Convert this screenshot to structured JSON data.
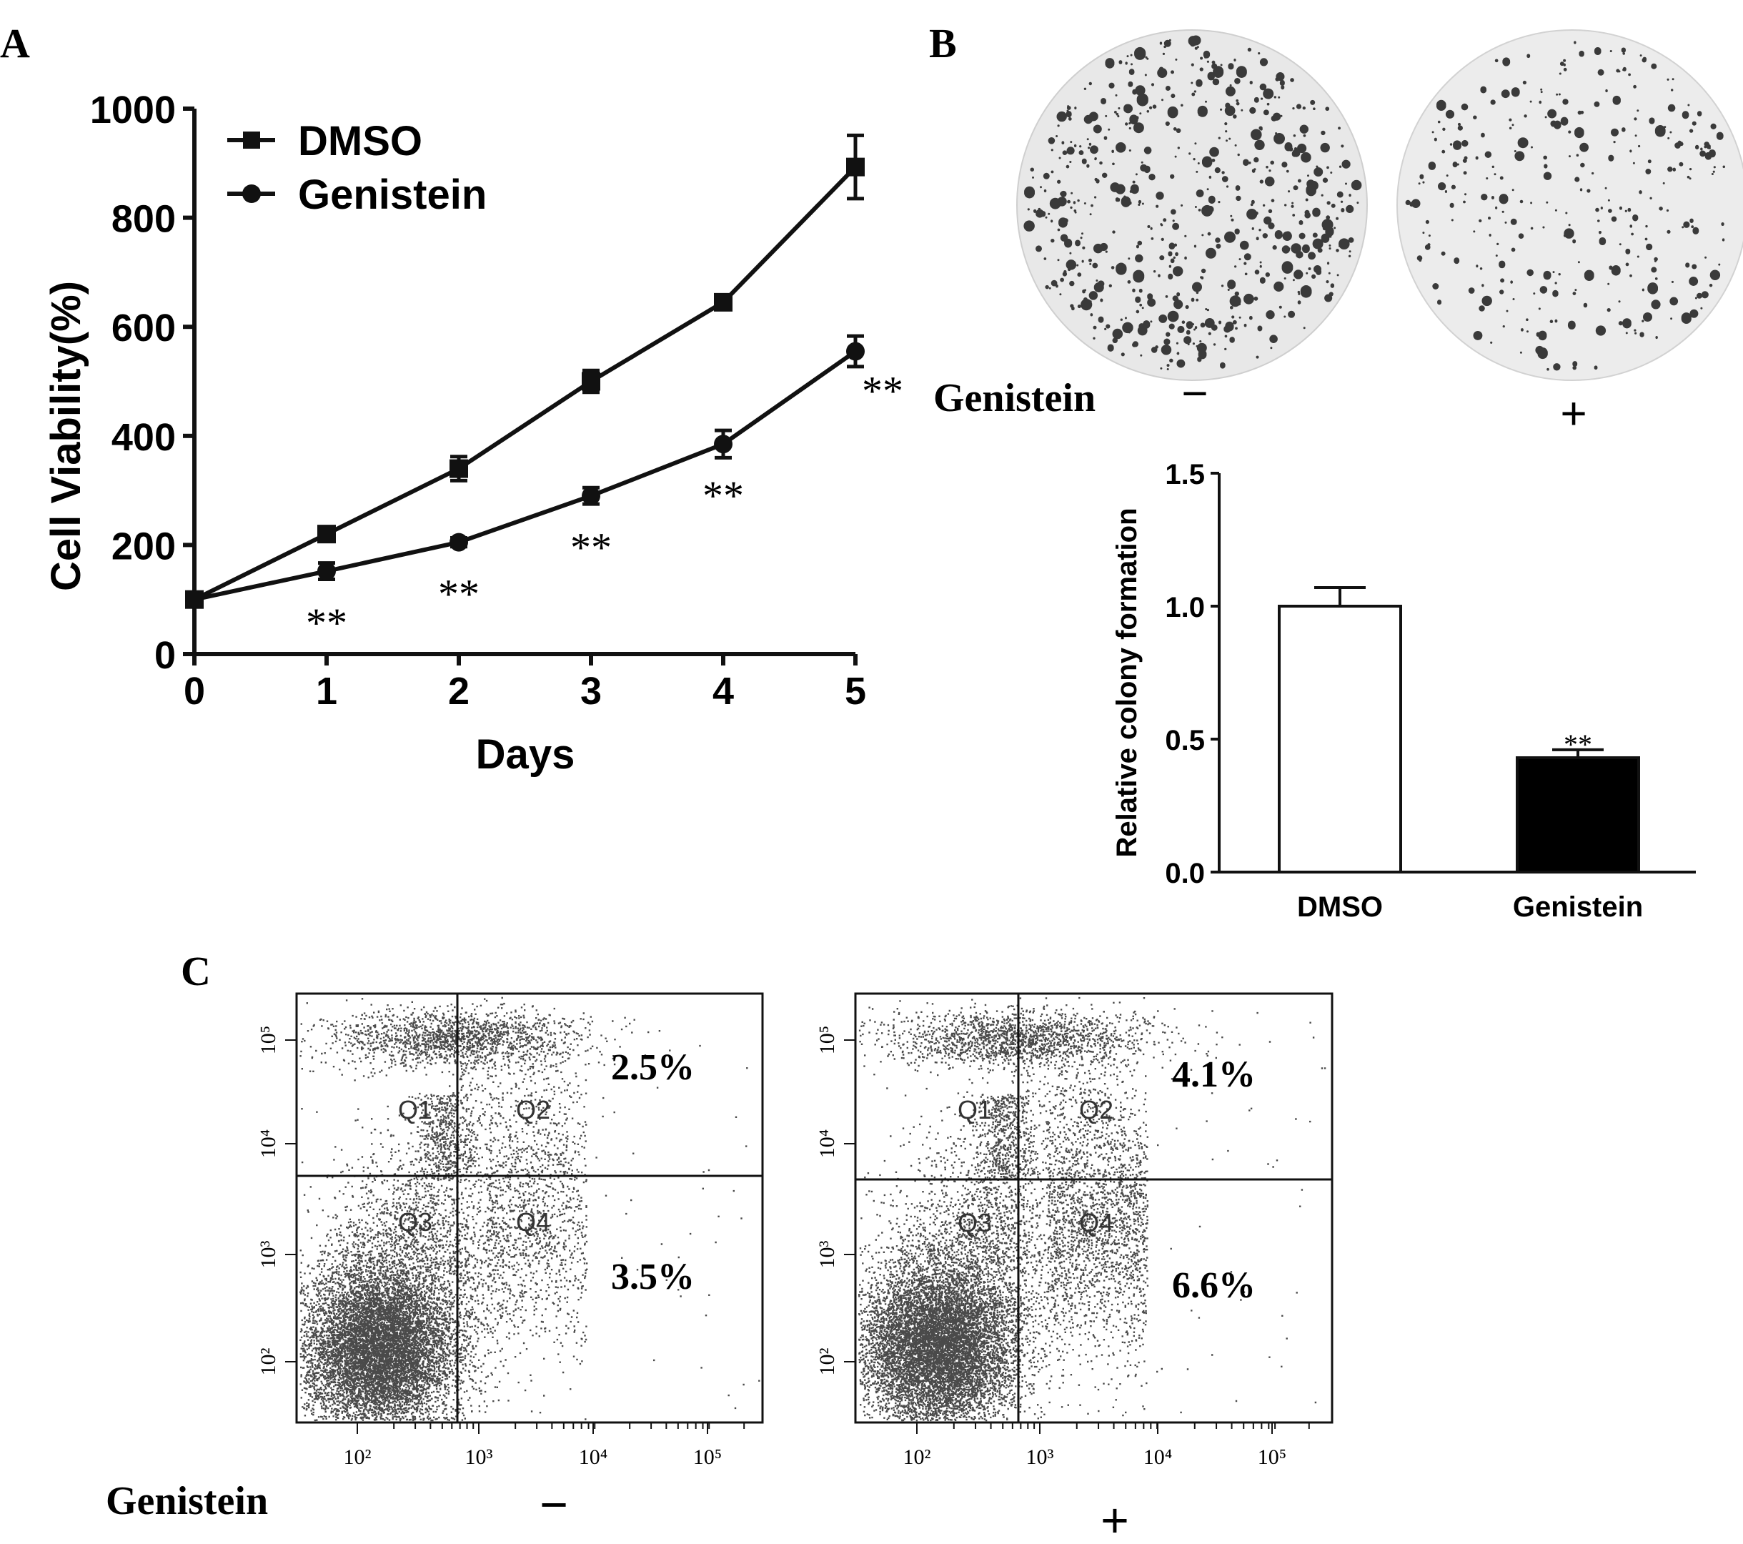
{
  "panel_labels": {
    "a": "A",
    "b": "B",
    "c": "C"
  },
  "colors": {
    "ink": "#111111",
    "dish": "#e9e9e9",
    "dots": "#3a3a3a",
    "bar_genistein": "#000000",
    "bar_dmso": "#ffffff"
  },
  "panel_b_dishes": {
    "row_label": "Genistein",
    "signs": [
      "−",
      "+"
    ]
  },
  "panel_c_flow": {
    "row_label": "Genistein",
    "signs": [
      "−",
      "+"
    ],
    "quadrant_labels": [
      "Q1",
      "Q2",
      "Q3",
      "Q4"
    ],
    "plots": [
      {
        "q2_percent": "2.5%",
        "q4_percent": "3.5%"
      },
      {
        "q2_percent": "4.1%",
        "q4_percent": "6.6%"
      }
    ],
    "x_ticks": [
      "10²",
      "10³",
      "10⁴",
      "10⁵"
    ],
    "y_ticks": [
      "10²",
      "10³",
      "10⁴",
      "10⁵"
    ]
  },
  "chart_data": [
    {
      "type": "line",
      "panel": "A",
      "xlabel": "Days",
      "ylabel": "Cell Viability(%)",
      "x": [
        0,
        1,
        2,
        3,
        4,
        5
      ],
      "xlim": [
        0,
        5
      ],
      "ylim": [
        0,
        1000
      ],
      "yticks": [
        0,
        200,
        400,
        600,
        800,
        1000
      ],
      "legend_position": "top-left",
      "grid": false,
      "series": [
        {
          "name": "DMSO",
          "marker": "square",
          "values": [
            100,
            220,
            340,
            500,
            645,
            893
          ],
          "errors": [
            8,
            12,
            22,
            20,
            10,
            58
          ]
        },
        {
          "name": "Genistein",
          "marker": "circle",
          "values": [
            100,
            152,
            205,
            290,
            385,
            555
          ],
          "errors": [
            8,
            15,
            8,
            15,
            25,
            28
          ]
        }
      ],
      "significance": [
        "",
        "**",
        "**",
        "**",
        "**",
        "**"
      ]
    },
    {
      "type": "bar",
      "panel": "B",
      "ylabel": "Relative colony formation",
      "categories": [
        "DMSO",
        "Genistein"
      ],
      "ylim": [
        0,
        1.5
      ],
      "yticks": [
        "0.0",
        "0.5",
        "1.0",
        "1.5"
      ],
      "values": [
        1.0,
        0.43
      ],
      "errors": [
        0.07,
        0.03
      ],
      "significance": [
        "",
        "**"
      ],
      "grid": false
    }
  ]
}
